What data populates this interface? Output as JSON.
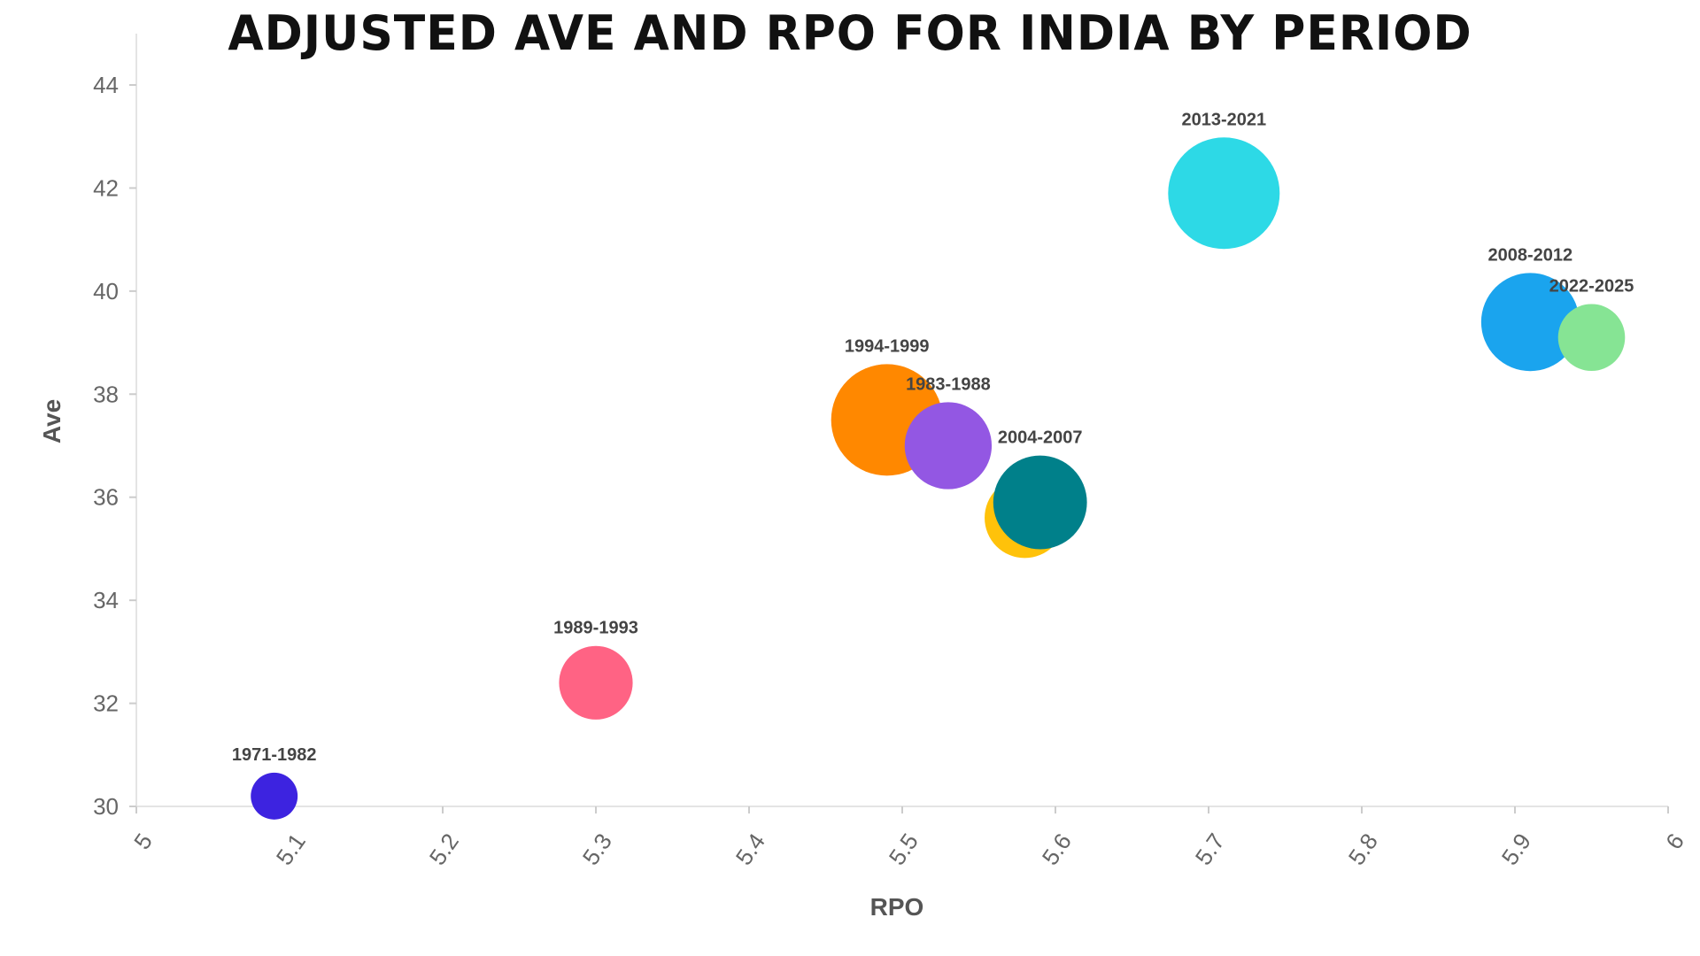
{
  "chart_data": {
    "type": "scatter",
    "title": "Adjusted Ave and RPO for India by Period",
    "xlabel": "RPO",
    "ylabel": "Ave",
    "xlim": [
      5,
      6
    ],
    "ylim": [
      30,
      45
    ],
    "x_ticks": [
      "5",
      "5.1",
      "5.2",
      "5.3",
      "5.4",
      "5.5",
      "5.6",
      "5.7",
      "5.8",
      "5.9",
      "6"
    ],
    "y_ticks": [
      "30",
      "32",
      "34",
      "36",
      "38",
      "40",
      "42",
      "44"
    ],
    "grid": false,
    "legend": "none",
    "points": [
      {
        "label": "1971-1982",
        "x": 5.09,
        "y": 30.2,
        "size": 0.42,
        "color": "#3d23e0",
        "label_pos": "above"
      },
      {
        "label": "1989-1993",
        "x": 5.3,
        "y": 32.4,
        "size": 0.66,
        "color": "#ff6384",
        "label_pos": "above"
      },
      {
        "label": "1994-1999",
        "x": 5.49,
        "y": 37.5,
        "size": 1.0,
        "color": "#ff8800",
        "label_pos": "above"
      },
      {
        "label": "1983-1988",
        "x": 5.53,
        "y": 37.0,
        "size": 0.78,
        "color": "#9357e3",
        "label_pos": "above"
      },
      {
        "label": "",
        "x": 5.58,
        "y": 35.6,
        "size": 0.72,
        "color": "#ffc20a",
        "label_pos": "none"
      },
      {
        "label": "2004-2007",
        "x": 5.59,
        "y": 35.9,
        "size": 0.84,
        "color": "#00808a",
        "label_pos": "above"
      },
      {
        "label": "2013-2021",
        "x": 5.71,
        "y": 41.9,
        "size": 1.0,
        "color": "#2dd9e6",
        "label_pos": "above"
      },
      {
        "label": "2008-2012",
        "x": 5.91,
        "y": 39.4,
        "size": 0.88,
        "color": "#1aa4ee",
        "label_pos": "above"
      },
      {
        "label": "2022-2025",
        "x": 5.95,
        "y": 39.1,
        "size": 0.6,
        "color": "#86e494",
        "label_pos": "above"
      }
    ]
  }
}
